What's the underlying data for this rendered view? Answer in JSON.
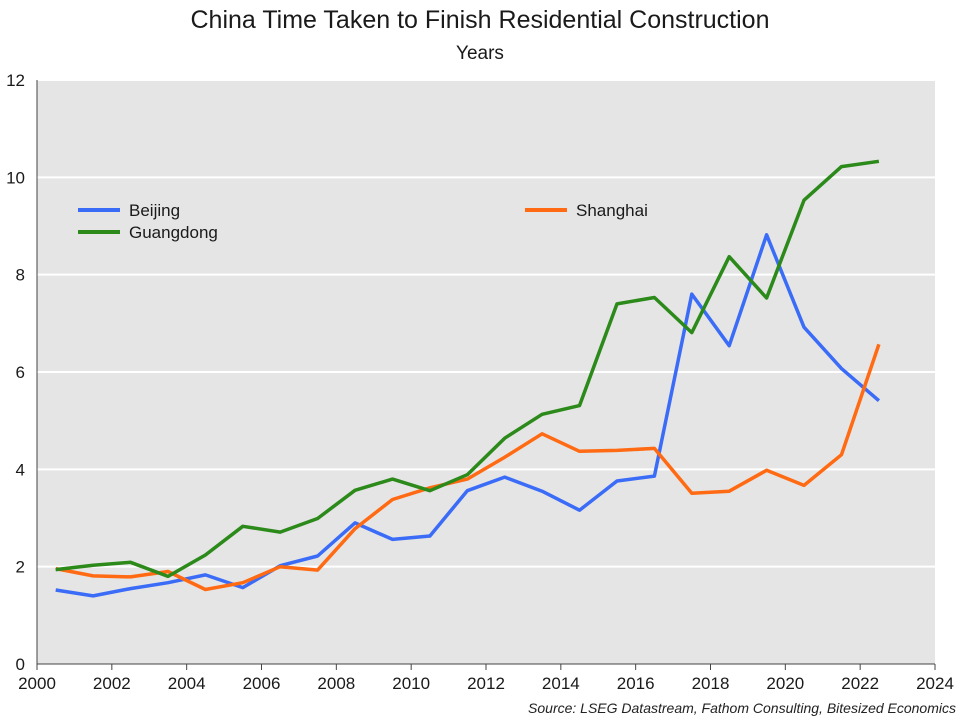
{
  "chart_data": {
    "type": "line",
    "title": "China Time Taken to Finish Residential Construction",
    "subtitle": "Years",
    "source": "Source: LSEG Datastream, Fathom Consulting, Bitesized Economics",
    "xlim": [
      2000,
      2024
    ],
    "ylim": [
      0,
      12
    ],
    "x_ticks": [
      "2000",
      "2002",
      "2004",
      "2006",
      "2008",
      "2010",
      "2012",
      "2014",
      "2016",
      "2018",
      "2020",
      "2022",
      "2024"
    ],
    "y_ticks": [
      "0",
      "2",
      "4",
      "6",
      "8",
      "10",
      "12"
    ],
    "grid": "horizontal",
    "plot_background": "#e5e5e5",
    "x": [
      2000.5,
      2001.5,
      2002.5,
      2003.5,
      2004.5,
      2005.5,
      2006.5,
      2007.5,
      2008.5,
      2009.5,
      2010.5,
      2011.5,
      2012.5,
      2013.5,
      2014.5,
      2015.5,
      2016.5,
      2017.5,
      2018.5,
      2019.5,
      2020.5,
      2021.5,
      2022.5
    ],
    "series": [
      {
        "name": "Beijing",
        "color": "#3b6cf7",
        "values": [
          1.52,
          1.4,
          1.55,
          1.67,
          1.83,
          1.57,
          2.02,
          2.22,
          2.9,
          2.56,
          2.63,
          3.56,
          3.84,
          3.55,
          3.16,
          3.76,
          3.86,
          7.6,
          6.54,
          8.82,
          6.92,
          6.07,
          5.41
        ]
      },
      {
        "name": "Shanghai",
        "color": "#ff6a13",
        "values": [
          1.96,
          1.81,
          1.79,
          1.9,
          1.53,
          1.67,
          2.0,
          1.93,
          2.78,
          3.38,
          3.62,
          3.8,
          4.25,
          4.73,
          4.37,
          4.39,
          4.43,
          3.51,
          3.55,
          3.98,
          3.67,
          4.3,
          6.57
        ]
      },
      {
        "name": "Guangdong",
        "color": "#2b8a1a",
        "values": [
          1.94,
          2.03,
          2.09,
          1.8,
          2.24,
          2.83,
          2.71,
          2.99,
          3.57,
          3.8,
          3.56,
          3.89,
          4.64,
          5.13,
          5.31,
          7.4,
          7.53,
          6.81,
          8.37,
          7.52,
          9.53,
          10.22,
          10.33
        ]
      }
    ],
    "legend": [
      {
        "series": "Beijing",
        "placement": "upper-left"
      },
      {
        "series": "Guangdong",
        "placement": "upper-left"
      },
      {
        "series": "Shanghai",
        "placement": "upper-right"
      }
    ]
  }
}
